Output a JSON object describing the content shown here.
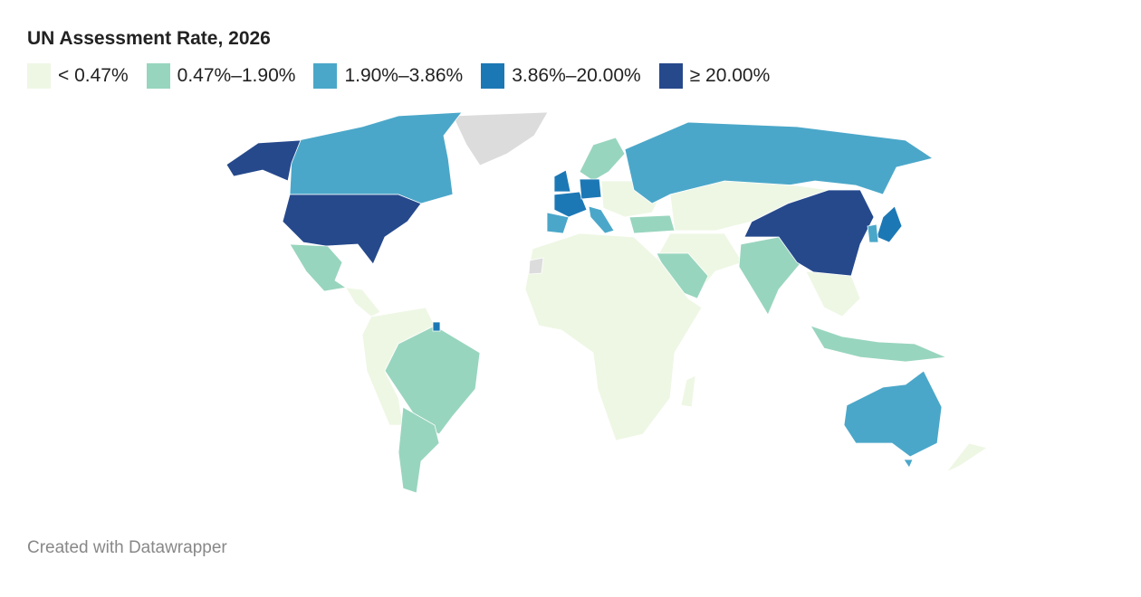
{
  "title": "UN Assessment Rate, 2026",
  "legend": [
    {
      "label": "< 0.47%",
      "color": "#eef7e4"
    },
    {
      "label": "0.47%–1.90%",
      "color": "#98d5be"
    },
    {
      "label": "1.90%–3.86%",
      "color": "#4ba7c9"
    },
    {
      "label": "3.86%–20.00%",
      "color": "#1c78b5"
    },
    {
      "label": "≥ 20.00%",
      "color": "#26498c"
    }
  ],
  "no_data_color": "#dcdcdc",
  "footer": "Created with Datawrapper"
}
